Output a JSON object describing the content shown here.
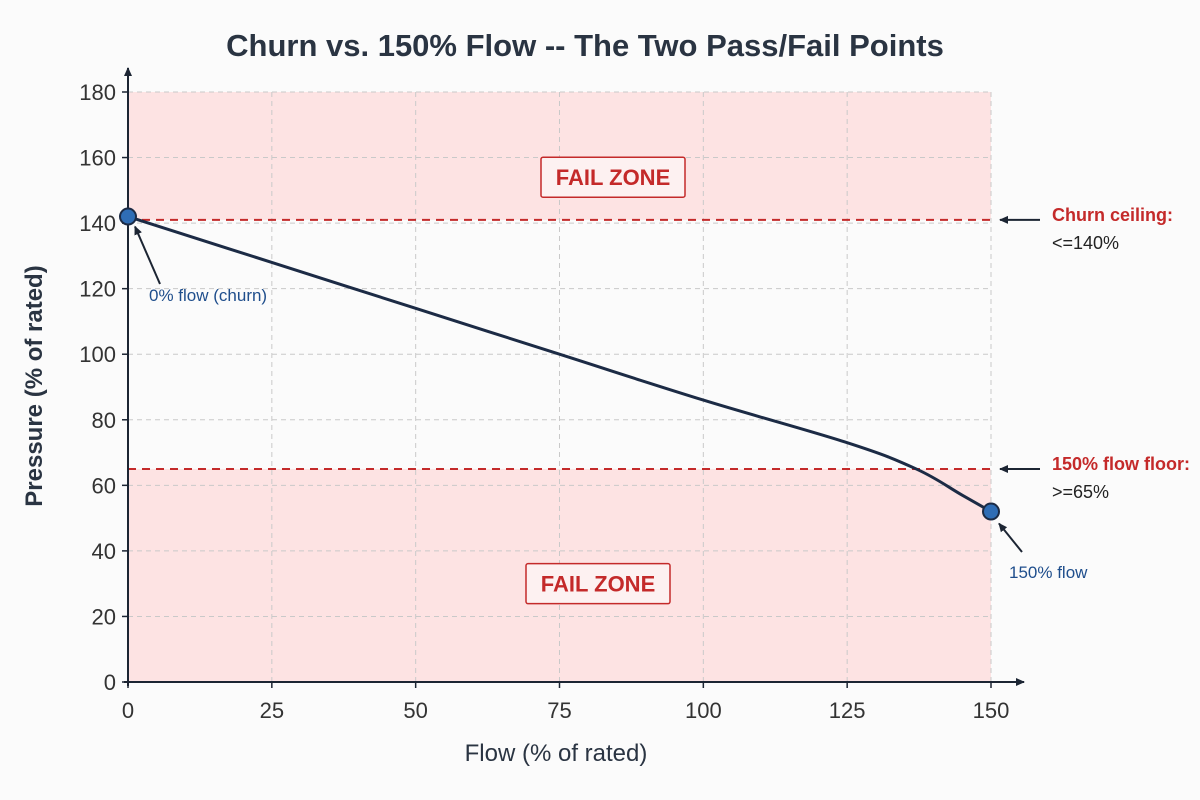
{
  "chart_data": {
    "type": "line",
    "title": "Churn vs. 150% Flow -- The Two Pass/Fail Points",
    "xlabel": "Flow (% of rated)",
    "ylabel": "Pressure (% of rated)",
    "xlim": [
      0,
      150
    ],
    "ylim": [
      0,
      180
    ],
    "x_ticks": [
      0,
      25,
      50,
      75,
      100,
      125,
      150
    ],
    "y_ticks": [
      0,
      20,
      40,
      60,
      80,
      100,
      120,
      140,
      160,
      180
    ],
    "grid": true,
    "series": [
      {
        "x": [
          0,
          25,
          50,
          75,
          100,
          125,
          137,
          145,
          150
        ],
        "y": [
          142,
          128,
          114,
          100,
          86,
          73,
          65,
          57,
          52
        ]
      }
    ],
    "key_points": [
      {
        "x": 0,
        "y": 142,
        "label": "0% flow (churn)"
      },
      {
        "x": 150,
        "y": 52,
        "label": "150% flow"
      }
    ],
    "thresholds": [
      {
        "y": 141,
        "label": "Churn ceiling:",
        "value_text": "<=140%"
      },
      {
        "y": 65,
        "label": "150% flow floor:",
        "value_text": ">=65%"
      }
    ],
    "zones": [
      {
        "from": 141,
        "to": 180,
        "label": "FAIL ZONE"
      },
      {
        "from": 0,
        "to": 65,
        "label": "FAIL ZONE"
      }
    ],
    "colors": {
      "line": "#1c2b45",
      "marker": "#2f6db5",
      "zone_fill": "#fde3e3",
      "threshold": "#c42a2a",
      "point_label": "#1f4e8c",
      "axis": "#1c2533"
    }
  }
}
